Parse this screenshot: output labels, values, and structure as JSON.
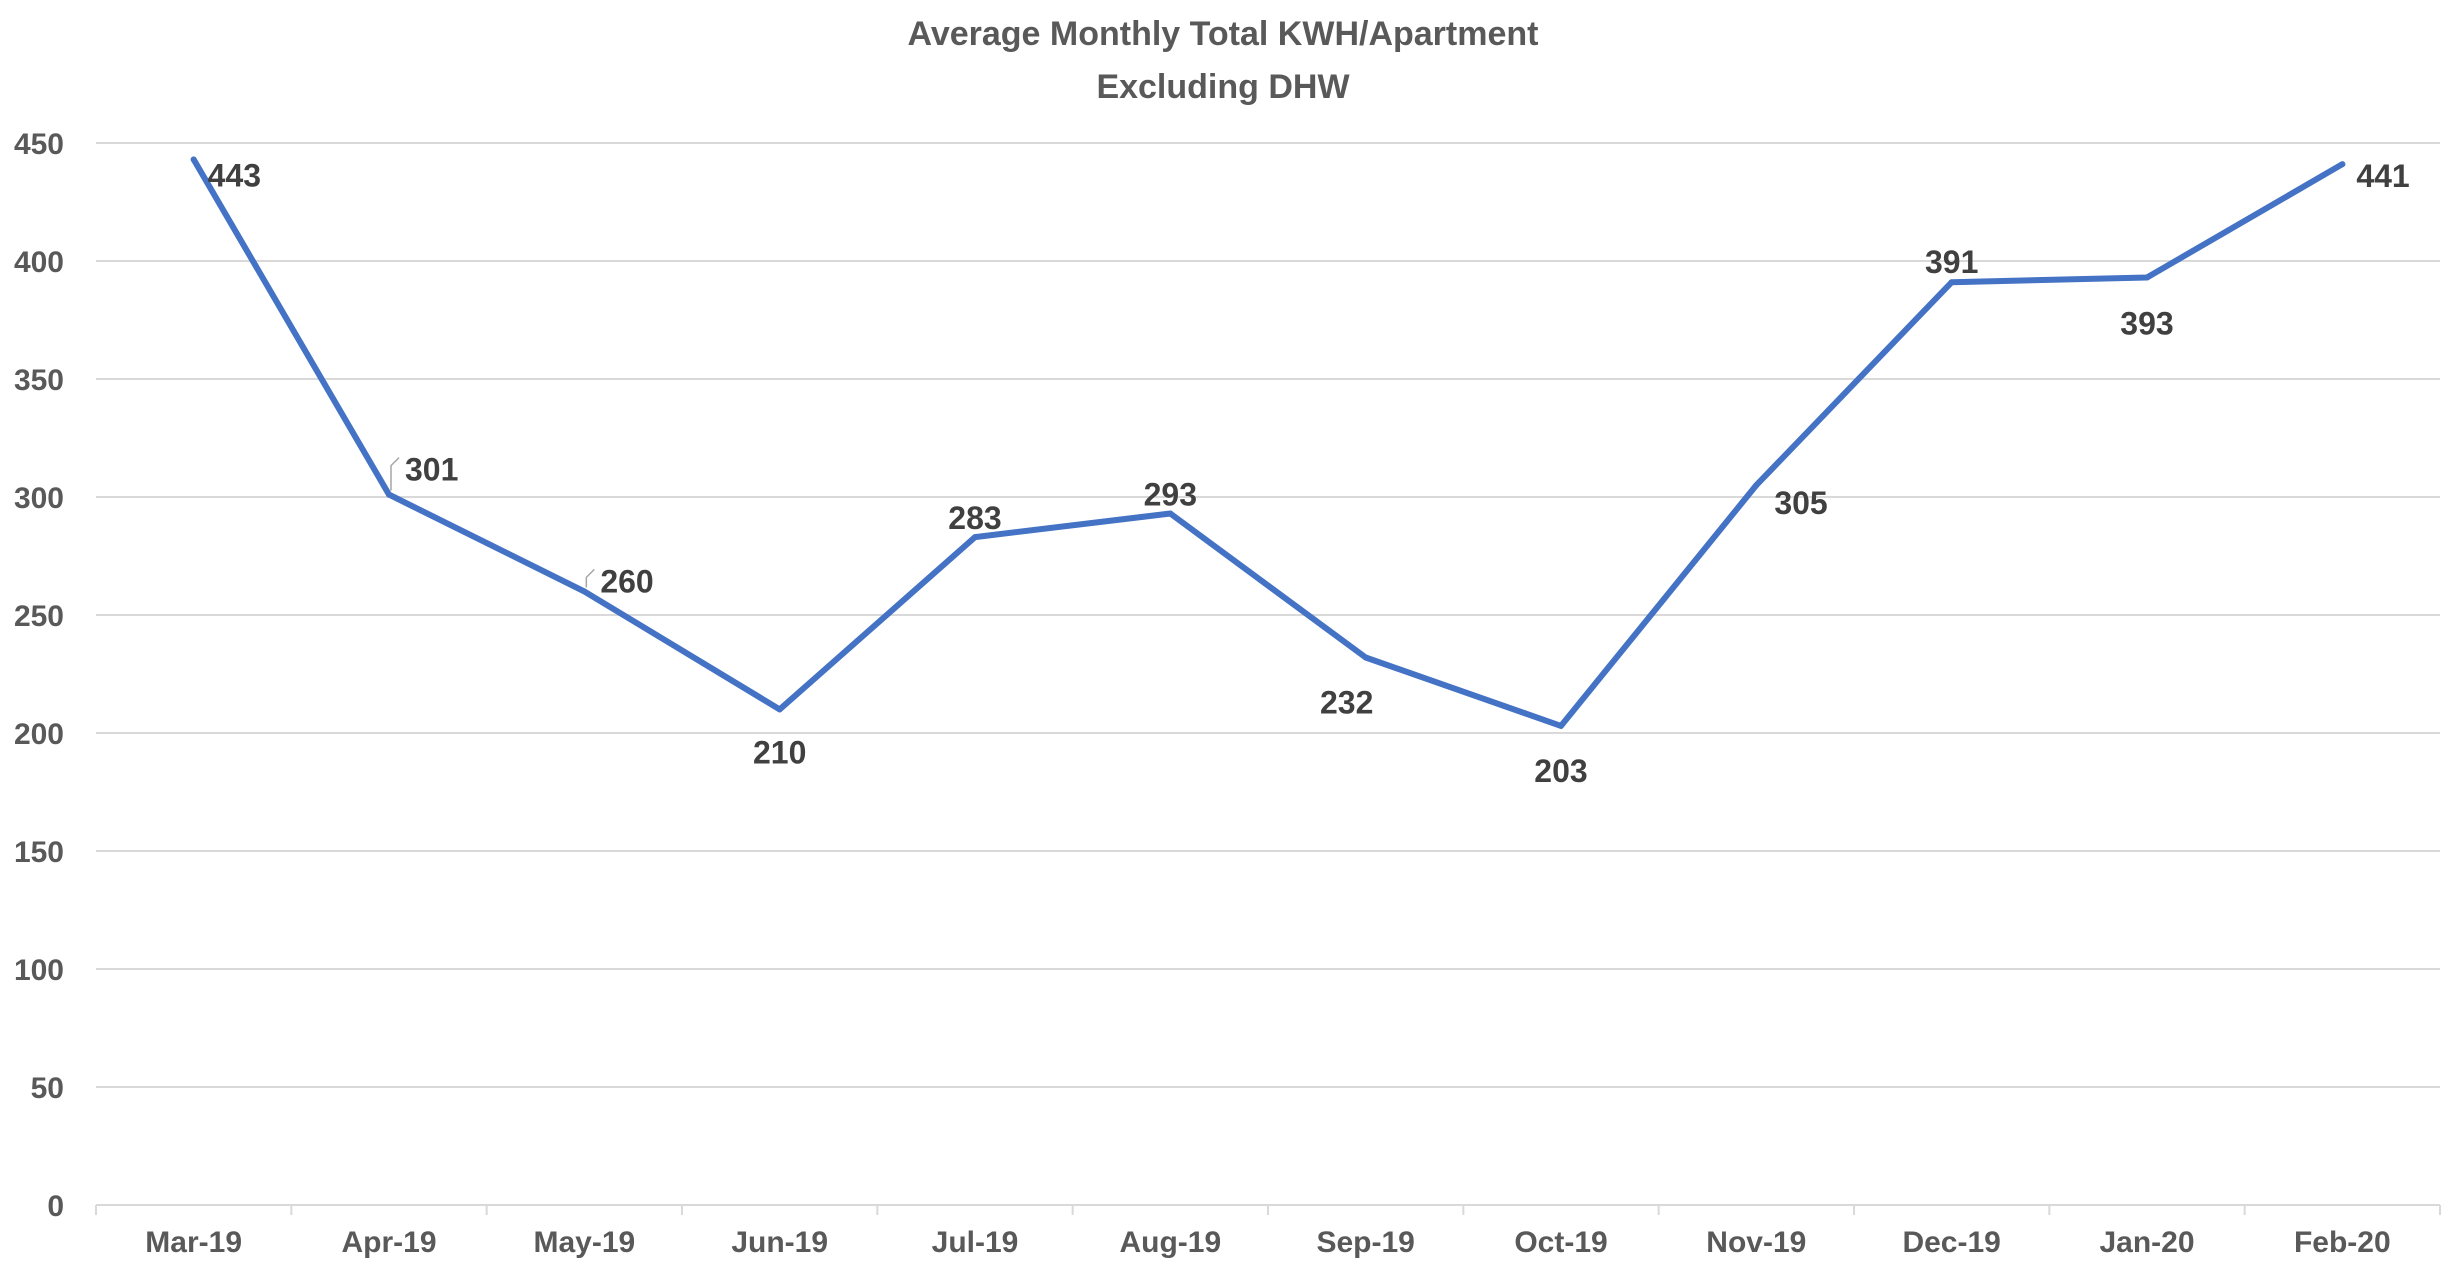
{
  "chart_data": {
    "type": "line",
    "title": [
      "Average Monthly Total KWH/Apartment",
      "Excluding DHW"
    ],
    "xlabel": "",
    "ylabel": "",
    "categories": [
      "Mar-19",
      "Apr-19",
      "May-19",
      "Jun-19",
      "Jul-19",
      "Aug-19",
      "Sep-19",
      "Oct-19",
      "Nov-19",
      "Dec-19",
      "Jan-20",
      "Feb-20"
    ],
    "series": [
      {
        "values": [
          443,
          301,
          260,
          210,
          283,
          293,
          232,
          203,
          305,
          391,
          393,
          441
        ],
        "color": "#4472c4"
      }
    ],
    "data_labels": [
      "443",
      "301",
      "260",
      "210",
      "283",
      "293",
      "232",
      "203",
      "305",
      "391",
      "393",
      "441"
    ],
    "ylim": [
      0,
      450
    ],
    "y_ticks": [
      0,
      50,
      100,
      150,
      200,
      250,
      300,
      350,
      400,
      450
    ],
    "y_tick_labels": [
      "0",
      "50",
      "100",
      "150",
      "200",
      "250",
      "300",
      "350",
      "400",
      "450"
    ],
    "grid": true,
    "legend": "none"
  }
}
